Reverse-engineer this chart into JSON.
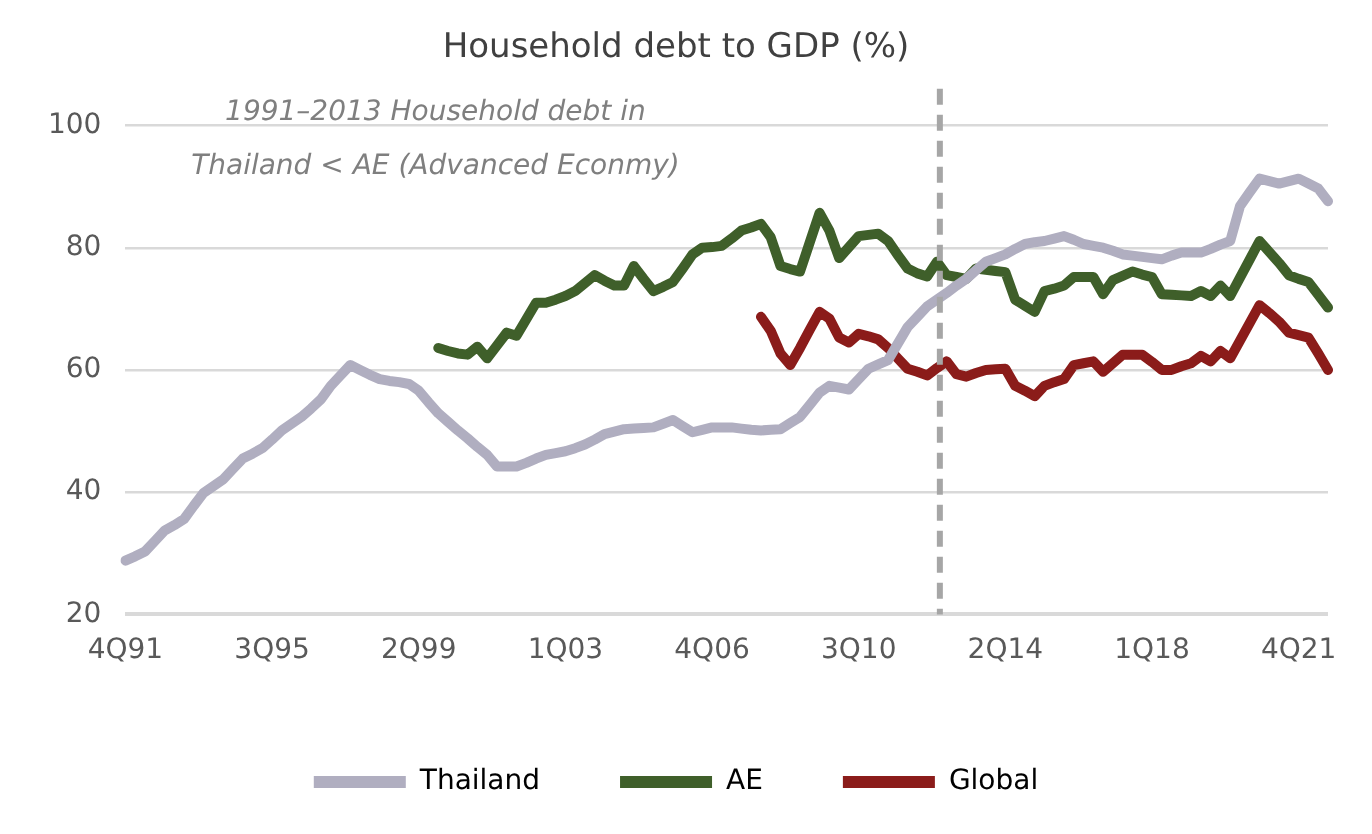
{
  "chart_data": {
    "type": "line",
    "title": "Household debt to GDP (%)",
    "categories": [
      "4Q91",
      null,
      null,
      null,
      null,
      null,
      null,
      null,
      null,
      null,
      null,
      null,
      null,
      null,
      null,
      "3Q95",
      null,
      null,
      null,
      null,
      null,
      null,
      null,
      null,
      null,
      null,
      null,
      null,
      null,
      null,
      "2Q99",
      null,
      null,
      null,
      null,
      null,
      null,
      null,
      null,
      null,
      null,
      null,
      null,
      null,
      null,
      "1Q03",
      null,
      null,
      null,
      null,
      null,
      null,
      null,
      null,
      null,
      null,
      null,
      null,
      null,
      null,
      "4Q06",
      null,
      null,
      null,
      null,
      null,
      null,
      null,
      null,
      null,
      null,
      null,
      null,
      null,
      null,
      "3Q10",
      null,
      null,
      null,
      null,
      null,
      null,
      null,
      null,
      null,
      null,
      null,
      null,
      null,
      null,
      "2Q14",
      null,
      null,
      null,
      null,
      null,
      null,
      null,
      null,
      null,
      null,
      null,
      null,
      null,
      null,
      "1Q18",
      null,
      null,
      null,
      null,
      null,
      null,
      null,
      null,
      null,
      null,
      null,
      null,
      null,
      null,
      "4Q21",
      null,
      null,
      null
    ],
    "ylim": [
      20,
      106
    ],
    "yticks": [
      20,
      40,
      60,
      80,
      100
    ],
    "grid": "y",
    "legend": "bottom",
    "marker": "none",
    "line_style": "solid",
    "annotations": [
      "1991–2013 Household debt in\nThailand < AE (Advanced Econmy)"
    ],
    "series": [
      {
        "name": "Thailand",
        "color": "#b0aec0",
        "values": [
          28.8,
          29.5,
          30.3,
          32.0,
          33.7,
          34.6,
          35.6,
          37.8,
          39.9,
          41.0,
          42.1,
          43.8,
          45.5,
          46.3,
          47.2,
          48.6,
          50.1,
          51.2,
          52.3,
          53.7,
          55.2,
          57.4,
          59.1,
          60.8,
          60.0,
          59.2,
          58.5,
          58.2,
          58.0,
          57.7,
          56.6,
          54.7,
          52.9,
          51.5,
          50.1,
          48.8,
          47.4,
          46.1,
          44.2,
          44.2,
          44.2,
          44.8,
          45.5,
          46.1,
          46.4,
          46.7,
          47.2,
          47.8,
          48.6,
          49.5,
          49.9,
          50.3,
          50.4,
          50.5,
          50.6,
          51.2,
          51.8,
          50.8,
          49.8,
          50.2,
          50.6,
          50.6,
          50.6,
          50.4,
          50.2,
          50.1,
          50.2,
          50.3,
          51.3,
          52.3,
          54.3,
          56.3,
          57.4,
          57.1,
          56.8,
          58.5,
          60.2,
          60.9,
          61.6,
          64.3,
          67.0,
          68.7,
          70.4,
          71.5,
          72.6,
          73.8,
          74.9,
          76.3,
          77.7,
          78.3,
          78.9,
          79.8,
          80.6,
          80.9,
          81.1,
          81.5,
          81.9,
          81.3,
          80.6,
          80.3,
          80.0,
          79.5,
          78.9,
          78.7,
          78.5,
          78.3,
          78.1,
          78.7,
          79.2,
          79.2,
          79.2,
          79.8,
          80.5,
          81.1,
          86.8,
          89.1,
          91.3,
          90.9,
          90.5,
          90.9,
          91.3,
          90.5,
          89.7,
          87.6
        ]
      },
      {
        "name": "AE",
        "color": "#3f5f2a",
        "values": [
          null,
          null,
          null,
          null,
          null,
          null,
          null,
          null,
          null,
          null,
          null,
          null,
          null,
          null,
          null,
          null,
          null,
          null,
          null,
          null,
          null,
          null,
          null,
          null,
          null,
          null,
          null,
          null,
          null,
          null,
          null,
          null,
          63.6,
          63.1,
          62.7,
          62.5,
          63.8,
          61.9,
          64.0,
          66.1,
          65.6,
          68.3,
          71.0,
          71.0,
          71.5,
          72.1,
          72.9,
          74.2,
          75.5,
          74.6,
          73.8,
          73.8,
          77.0,
          74.9,
          72.9,
          73.6,
          74.4,
          76.6,
          78.9,
          80.0,
          80.1,
          80.3,
          81.5,
          82.8,
          83.3,
          83.9,
          81.7,
          77.0,
          76.5,
          76.1,
          80.9,
          85.7,
          82.8,
          78.3,
          80.1,
          81.9,
          82.1,
          82.3,
          81.1,
          78.8,
          76.6,
          75.8,
          75.3,
          77.7,
          75.5,
          75.2,
          74.9,
          76.6,
          76.4,
          76.2,
          76.0,
          71.5,
          70.5,
          69.5,
          72.9,
          73.3,
          73.8,
          75.2,
          75.2,
          75.2,
          72.4,
          74.7,
          75.4,
          76.1,
          75.6,
          75.2,
          72.4,
          72.3,
          72.2,
          72.1,
          72.9,
          72.1,
          73.8,
          72.1,
          75.1,
          78.1,
          81.1,
          79.3,
          77.5,
          75.5,
          74.9,
          74.4,
          72.3,
          70.2
        ]
      },
      {
        "name": "Global",
        "color": "#8b1c1a",
        "values": [
          null,
          null,
          null,
          null,
          null,
          null,
          null,
          null,
          null,
          null,
          null,
          null,
          null,
          null,
          null,
          null,
          null,
          null,
          null,
          null,
          null,
          null,
          null,
          null,
          null,
          null,
          null,
          null,
          null,
          null,
          null,
          null,
          null,
          null,
          null,
          null,
          null,
          null,
          null,
          null,
          null,
          null,
          null,
          null,
          null,
          null,
          null,
          null,
          null,
          null,
          null,
          null,
          null,
          null,
          null,
          null,
          null,
          null,
          null,
          null,
          null,
          null,
          null,
          null,
          null,
          68.7,
          66.4,
          62.7,
          60.8,
          63.6,
          66.6,
          69.5,
          68.4,
          65.3,
          64.5,
          65.9,
          65.5,
          65.0,
          63.6,
          61.9,
          60.2,
          59.7,
          59.1,
          60.3,
          61.4,
          59.3,
          58.9,
          59.5,
          60.0,
          60.1,
          60.2,
          57.4,
          56.6,
          55.7,
          57.4,
          58.0,
          58.5,
          60.8,
          61.1,
          61.4,
          59.7,
          61.1,
          62.5,
          62.5,
          62.5,
          61.3,
          60.0,
          60.0,
          60.6,
          61.1,
          62.3,
          61.4,
          63.1,
          61.9,
          64.8,
          67.7,
          70.6,
          69.3,
          67.9,
          66.1,
          65.7,
          65.3,
          62.7,
          60.0
        ]
      }
    ]
  }
}
